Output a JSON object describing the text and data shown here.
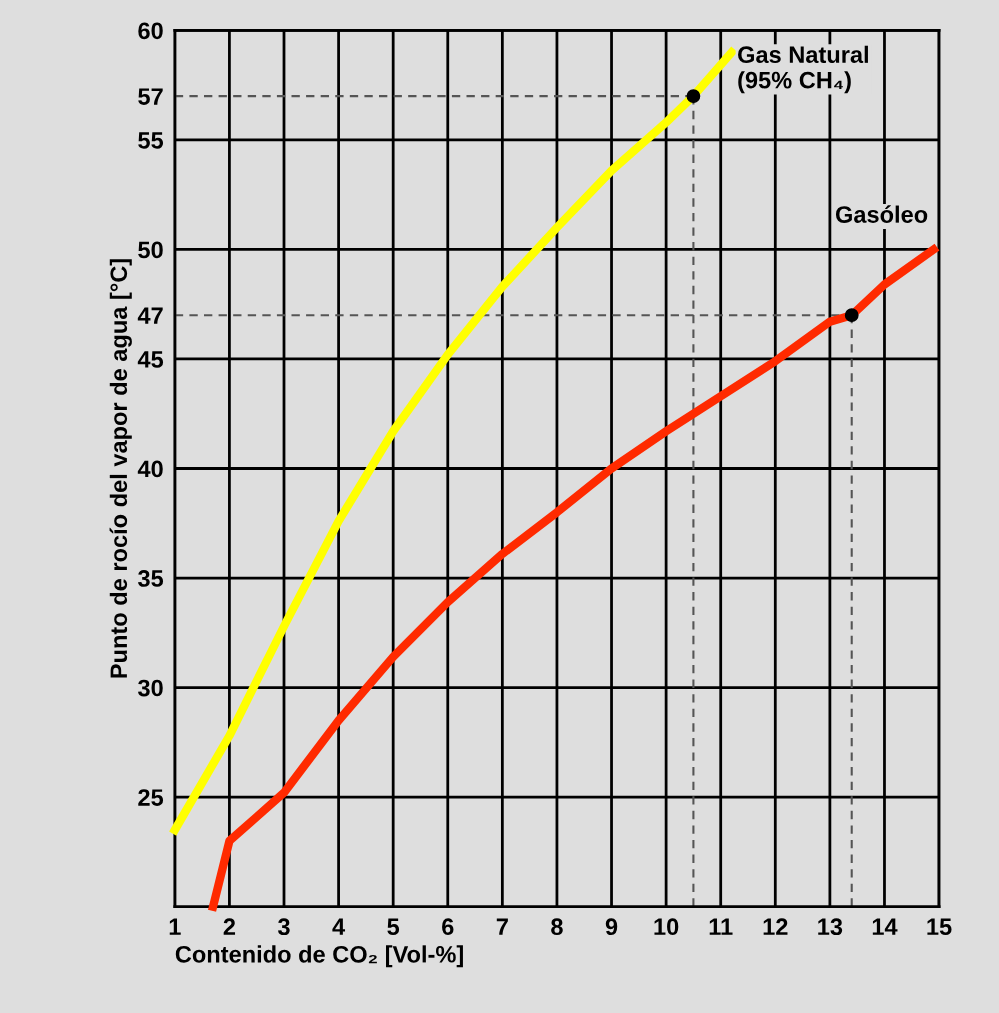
{
  "chart_data": {
    "type": "line",
    "xlabel": "Contenido de CO₂ [Vol-%]",
    "ylabel": "Punto de rocío del vapor de agua [°C]",
    "xlim": [
      1,
      15
    ],
    "xticks": [
      1,
      2,
      3,
      4,
      5,
      6,
      7,
      8,
      9,
      10,
      11,
      12,
      13,
      14,
      15
    ],
    "ylim": [
      20,
      60
    ],
    "yticks": [
      25,
      30,
      35,
      40,
      45,
      47,
      50,
      55,
      57,
      60
    ],
    "grid": true,
    "legend": false,
    "marker": "none",
    "line_style": "solid",
    "series": [
      {
        "name": "Gas Natural\n(95% CH₄)",
        "color": "#ffff00",
        "x": [
          1.0,
          2,
          3,
          4,
          5,
          6,
          7,
          8,
          9,
          10,
          10.5,
          11.2
        ],
        "values": [
          23.5,
          27.8,
          32.8,
          37.6,
          41.7,
          45.2,
          48.3,
          51.0,
          53.6,
          55.8,
          57,
          59.0
        ]
      },
      {
        "name": "Gasóleo",
        "color": "#ff2a00",
        "x": [
          1.7,
          2,
          3,
          4,
          5,
          6,
          7,
          8,
          9,
          10,
          11,
          12,
          13,
          13.4,
          14,
          14.9
        ],
        "values": [
          20.0,
          23.0,
          25.2,
          28.5,
          31.4,
          33.9,
          36.1,
          38.0,
          40.0,
          41.7,
          43.3,
          44.9,
          46.7,
          47,
          48.4,
          50.0
        ]
      },
      {
        "type": "scatter",
        "color": "#000000",
        "x": [
          10.5,
          13.4
        ],
        "values": [
          57,
          47
        ],
        "marker": "circle"
      }
    ],
    "ref_lines": [
      {
        "axis": "y",
        "value": 57,
        "color": "#555555",
        "line_style": "dashed"
      },
      {
        "axis": "y",
        "value": 47,
        "color": "#555555",
        "line_style": "dashed"
      },
      {
        "axis": "x",
        "value": 10.5,
        "color": "#555555",
        "line_style": "dashed"
      },
      {
        "axis": "x",
        "value": 13.4,
        "color": "#555555",
        "line_style": "dashed"
      }
    ]
  }
}
